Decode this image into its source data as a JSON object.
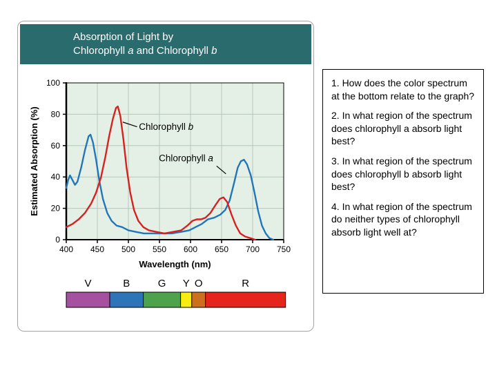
{
  "title": {
    "line1": "Absorption of Light by",
    "line2_parts": [
      "Chlorophyll ",
      "a",
      " and Chlorophyll ",
      "b"
    ]
  },
  "questions": [
    "1. How does the color spectrum at the bottom relate to the graph?",
    "2. In what region of the spectrum does chlorophyll a absorb light best?",
    "3. In what region of the spectrum does chlorophyll b absorb light best?",
    "4. In what region of the spectrum do neither types of chlorophyll absorb light well at?"
  ],
  "chart_data": {
    "type": "line",
    "title": "Absorption of Light by Chlorophyll a and Chlorophyll b",
    "xlabel": "Wavelength (nm)",
    "ylabel": "Estimated Absorption (%)",
    "xlim": [
      400,
      750
    ],
    "ylim": [
      0,
      100
    ],
    "x_ticks": [
      400,
      450,
      500,
      550,
      600,
      650,
      700,
      750
    ],
    "y_ticks": [
      0,
      20,
      40,
      60,
      80,
      100
    ],
    "grid": true,
    "grid_color": "#b3c7b7",
    "plot_bg": "#e4f0e5",
    "series": [
      {
        "name": "Chlorophyll a",
        "color": "#2275bb",
        "points": [
          [
            400,
            33
          ],
          [
            403,
            38
          ],
          [
            406,
            41
          ],
          [
            410,
            38
          ],
          [
            414,
            35
          ],
          [
            418,
            37
          ],
          [
            424,
            46
          ],
          [
            430,
            57
          ],
          [
            436,
            66
          ],
          [
            439,
            67
          ],
          [
            443,
            62
          ],
          [
            448,
            51
          ],
          [
            453,
            38
          ],
          [
            459,
            26
          ],
          [
            466,
            17
          ],
          [
            473,
            12
          ],
          [
            481,
            9
          ],
          [
            490,
            8
          ],
          [
            500,
            6
          ],
          [
            512,
            5
          ],
          [
            525,
            4
          ],
          [
            540,
            4
          ],
          [
            555,
            4
          ],
          [
            570,
            4
          ],
          [
            585,
            5
          ],
          [
            598,
            6
          ],
          [
            608,
            8
          ],
          [
            618,
            10
          ],
          [
            628,
            13
          ],
          [
            638,
            14
          ],
          [
            648,
            16
          ],
          [
            656,
            19
          ],
          [
            663,
            25
          ],
          [
            670,
            36
          ],
          [
            676,
            46
          ],
          [
            681,
            50
          ],
          [
            686,
            51
          ],
          [
            691,
            48
          ],
          [
            697,
            41
          ],
          [
            703,
            30
          ],
          [
            709,
            18
          ],
          [
            715,
            9
          ],
          [
            721,
            4
          ],
          [
            727,
            1
          ],
          [
            733,
            0
          ]
        ]
      },
      {
        "name": "Chlorophyll b",
        "color": "#d7201f",
        "points": [
          [
            400,
            8
          ],
          [
            410,
            10
          ],
          [
            420,
            13
          ],
          [
            430,
            17
          ],
          [
            440,
            23
          ],
          [
            448,
            30
          ],
          [
            456,
            40
          ],
          [
            463,
            53
          ],
          [
            469,
            66
          ],
          [
            475,
            77
          ],
          [
            480,
            84
          ],
          [
            483,
            85
          ],
          [
            487,
            79
          ],
          [
            492,
            64
          ],
          [
            497,
            46
          ],
          [
            503,
            30
          ],
          [
            509,
            19
          ],
          [
            516,
            12
          ],
          [
            524,
            8
          ],
          [
            533,
            6
          ],
          [
            545,
            5
          ],
          [
            558,
            4
          ],
          [
            572,
            5
          ],
          [
            585,
            6
          ],
          [
            595,
            9
          ],
          [
            603,
            12
          ],
          [
            610,
            13
          ],
          [
            617,
            13
          ],
          [
            624,
            14
          ],
          [
            632,
            17
          ],
          [
            640,
            22
          ],
          [
            647,
            26
          ],
          [
            653,
            27
          ],
          [
            659,
            24
          ],
          [
            666,
            16
          ],
          [
            673,
            9
          ],
          [
            680,
            4
          ],
          [
            688,
            2
          ],
          [
            696,
            1
          ],
          [
            704,
            0
          ]
        ]
      }
    ],
    "annotations": [
      {
        "label_parts": [
          "Chlorophyll ",
          "b"
        ],
        "x": 517,
        "y": 70,
        "leader": [
          [
            514,
            72
          ],
          [
            491,
            75
          ]
        ]
      },
      {
        "label_parts": [
          "Chlorophyll ",
          "a"
        ],
        "x": 549,
        "y": 50,
        "leader": [
          [
            642,
            47
          ],
          [
            657,
            42
          ]
        ]
      }
    ],
    "spectrum_bar": {
      "segments": [
        {
          "label": "V",
          "color": "#a551a0",
          "from": 400,
          "to": 470
        },
        {
          "label": "B",
          "color": "#2e74b8",
          "from": 470,
          "to": 524
        },
        {
          "label": "G",
          "color": "#4fa24c",
          "from": 524,
          "to": 584
        },
        {
          "label": "Y",
          "color": "#f8ec12",
          "from": 584,
          "to": 602
        },
        {
          "label": "O",
          "color": "#cc6f1e",
          "from": 602,
          "to": 624
        },
        {
          "label": "R",
          "color": "#e5251c",
          "from": 624,
          "to": 753
        }
      ]
    }
  }
}
